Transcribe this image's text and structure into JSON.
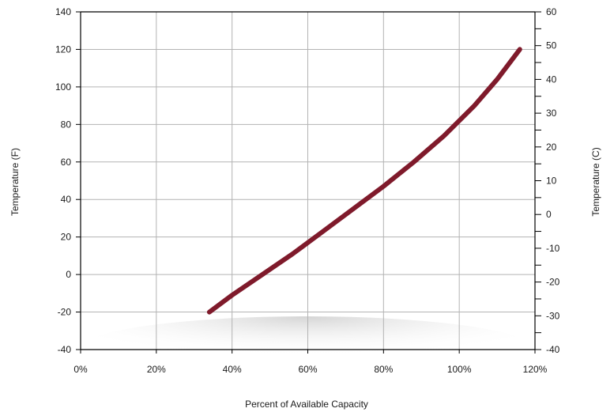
{
  "chart_data": {
    "type": "line",
    "title": "",
    "xlabel": "Percent of Available Capacity",
    "ylabel": "Temperature (F)",
    "y2label": "Temperature (C)",
    "xlim": [
      0,
      120
    ],
    "ylim": [
      -40,
      140
    ],
    "y2lim": [
      -40,
      60
    ],
    "x_ticks": [
      "0%",
      "20%",
      "40%",
      "60%",
      "80%",
      "100%",
      "120%"
    ],
    "y_ticks": [
      "-40",
      "-20",
      "0",
      "20",
      "40",
      "60",
      "80",
      "100",
      "120",
      "140"
    ],
    "y2_ticks": [
      "-40",
      "-30",
      "-20",
      "-10",
      "0",
      "10",
      "20",
      "30",
      "40",
      "50",
      "60"
    ],
    "grid": true,
    "series": [
      {
        "color": "#7f1a2b",
        "x": [
          34,
          40,
          48,
          56,
          64,
          72,
          80,
          88,
          96,
          104,
          110,
          116
        ],
        "y": [
          -20,
          -11,
          0,
          11,
          23,
          35,
          47,
          60,
          74,
          90,
          104,
          120
        ]
      }
    ]
  }
}
